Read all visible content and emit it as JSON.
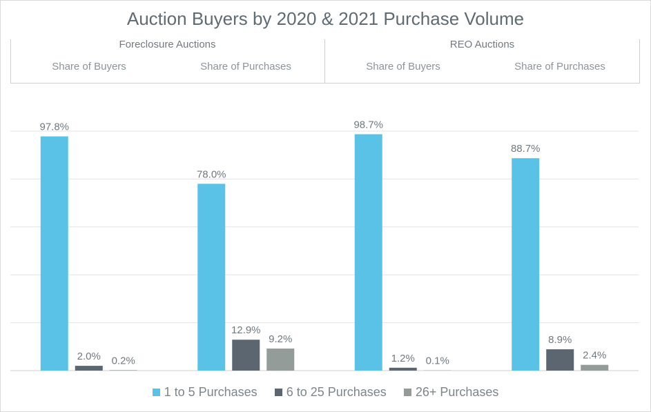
{
  "chart_data": {
    "type": "bar",
    "title": "Auction Buyers by 2020 & 2021 Purchase Volume",
    "groups": [
      {
        "label": "Foreclosure Auctions",
        "subgroups": [
          "Share of Buyers",
          "Share of Purchases"
        ]
      },
      {
        "label": "REO Auctions",
        "subgroups": [
          "Share of Buyers",
          "Share of Purchases"
        ]
      }
    ],
    "categories": [
      "Foreclosure Auctions - Share of Buyers",
      "Foreclosure Auctions - Share of Purchases",
      "REO Auctions - Share of Buyers",
      "REO Auctions - Share of Purchases"
    ],
    "series": [
      {
        "name": "1 to 5 Purchases",
        "color": "#5bc2e7",
        "values": [
          97.8,
          78.0,
          98.7,
          88.7
        ],
        "labels": [
          "97.8%",
          "78.0%",
          "98.7%",
          "88.7%"
        ]
      },
      {
        "name": "6 to 25 Purchases",
        "color": "#5b6670",
        "values": [
          2.0,
          12.9,
          1.2,
          8.9
        ],
        "labels": [
          "2.0%",
          "12.9%",
          "1.2%",
          "8.9%"
        ]
      },
      {
        "name": "26+ Purchases",
        "color": "#949c9a",
        "values": [
          0.2,
          9.2,
          0.1,
          2.4
        ],
        "labels": [
          "0.2%",
          "9.2%",
          "0.1%",
          "2.4%"
        ]
      }
    ],
    "ylim": [
      0,
      100
    ],
    "grid": true,
    "legend": "bottom"
  }
}
